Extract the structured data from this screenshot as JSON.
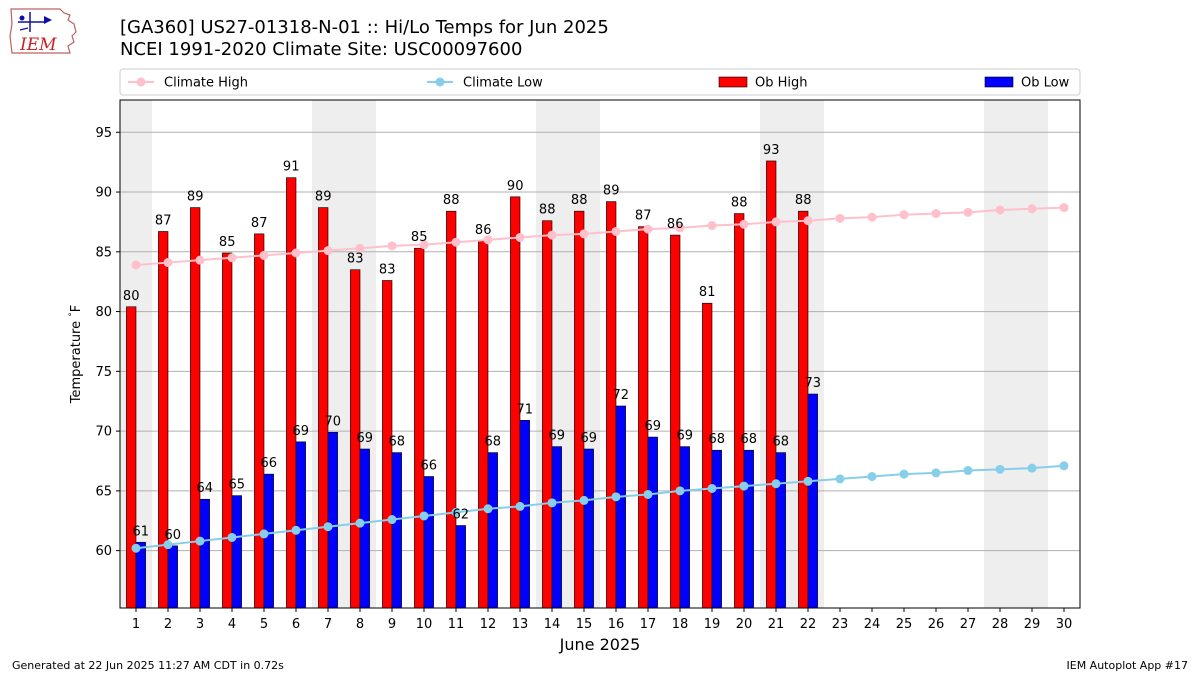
{
  "header": {
    "title_line1": "[GA360] US27-01318-N-01  :: Hi/Lo Temps for Jun 2025",
    "title_line2": "NCEI 1991-2020 Climate Site: USC00097600",
    "logo_text": "IEM"
  },
  "footer": {
    "generated": "Generated at 22 Jun 2025 11:27 AM CDT in 0.72s",
    "app": "IEM Autoplot App #17"
  },
  "colors": {
    "ob_high": "#ff0000",
    "ob_low": "#0000ff",
    "climate_high": "#ffc0cb",
    "climate_low": "#87ceeb",
    "weekend_shade": "#eeeeee",
    "grid": "#b0b0b0"
  },
  "chart_data": {
    "type": "bar",
    "xlabel": "June 2025",
    "ylabel": "Temperature $^\\circ$F",
    "ylim": [
      55.2,
      97.7
    ],
    "yticks": [
      60,
      65,
      70,
      75,
      80,
      85,
      90,
      95
    ],
    "grid": "horizontal",
    "legend_position": "top",
    "days": [
      1,
      2,
      3,
      4,
      5,
      6,
      7,
      8,
      9,
      10,
      11,
      12,
      13,
      14,
      15,
      16,
      17,
      18,
      19,
      20,
      21,
      22,
      23,
      24,
      25,
      26,
      27,
      28,
      29,
      30
    ],
    "shaded_days": [
      [
        1,
        1
      ],
      [
        7,
        8
      ],
      [
        14,
        15
      ],
      [
        21,
        22
      ],
      [
        28,
        29
      ]
    ],
    "series": [
      {
        "name": "Climate High",
        "kind": "line",
        "values": [
          83.9,
          84.1,
          84.3,
          84.5,
          84.7,
          84.9,
          85.1,
          85.3,
          85.5,
          85.6,
          85.8,
          86.0,
          86.2,
          86.4,
          86.5,
          86.7,
          86.9,
          87.0,
          87.2,
          87.3,
          87.5,
          87.6,
          87.8,
          87.9,
          88.1,
          88.2,
          88.3,
          88.5,
          88.6,
          88.7
        ]
      },
      {
        "name": "Climate Low",
        "kind": "line",
        "values": [
          60.2,
          60.5,
          60.8,
          61.1,
          61.4,
          61.7,
          62.0,
          62.3,
          62.6,
          62.9,
          63.2,
          63.5,
          63.7,
          64.0,
          64.2,
          64.5,
          64.7,
          65.0,
          65.2,
          65.4,
          65.6,
          65.8,
          66.0,
          66.2,
          66.4,
          66.5,
          66.7,
          66.8,
          66.9,
          67.1
        ]
      },
      {
        "name": "Ob High",
        "kind": "bar",
        "values": [
          80.4,
          86.7,
          88.7,
          84.9,
          86.5,
          91.2,
          88.7,
          83.5,
          82.6,
          85.3,
          88.4,
          85.9,
          89.6,
          87.6,
          88.4,
          89.2,
          87.1,
          86.4,
          80.7,
          88.2,
          92.6,
          88.4
        ],
        "labels": [
          "80",
          "87",
          "89",
          "85",
          "87",
          "91",
          "89",
          "83",
          "83",
          "85",
          "88",
          "86",
          "90",
          "88",
          "88",
          "89",
          "87",
          "86",
          "81",
          "88",
          "93",
          "88"
        ]
      },
      {
        "name": "Ob Low",
        "kind": "bar",
        "values": [
          60.7,
          60.4,
          64.3,
          64.6,
          66.4,
          69.1,
          69.9,
          68.5,
          68.2,
          66.2,
          62.1,
          68.2,
          70.9,
          68.7,
          68.5,
          72.1,
          69.5,
          68.7,
          68.4,
          68.4,
          68.2,
          73.1
        ],
        "labels": [
          "61",
          "60",
          "64",
          "65",
          "66",
          "69",
          "70",
          "69",
          "68",
          "66",
          "62",
          "68",
          "71",
          "69",
          "69",
          "72",
          "69",
          "69",
          "68",
          "68",
          "68",
          "73"
        ]
      }
    ]
  }
}
